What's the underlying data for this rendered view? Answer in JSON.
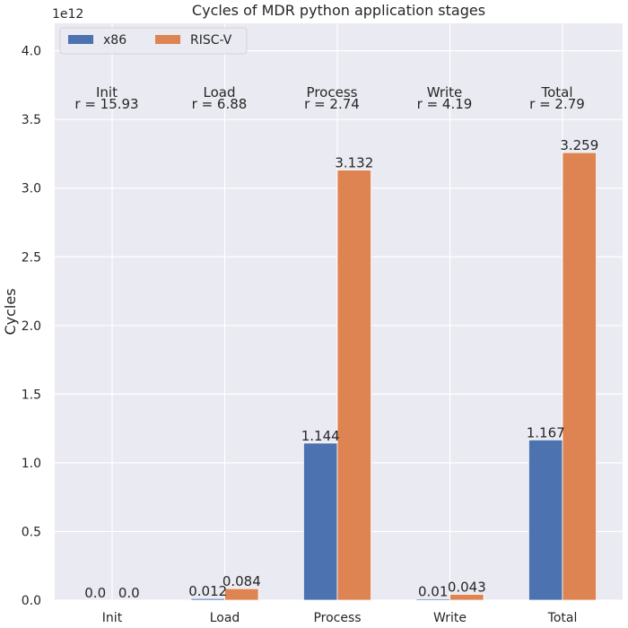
{
  "chart_data": {
    "type": "bar",
    "title": "Cycles of MDR python application stages",
    "ylabel": "Cycles",
    "y_multiplier": "1e12",
    "ylim": [
      0,
      4.2
    ],
    "yticks": [
      "0.0",
      "0.5",
      "1.0",
      "1.5",
      "2.0",
      "2.5",
      "3.0",
      "3.5",
      "4.0"
    ],
    "categories": [
      "Init",
      "Load",
      "Process",
      "Write",
      "Total"
    ],
    "series": [
      {
        "name": "x86",
        "color": "#4c72b0",
        "values": [
          0.0,
          0.012,
          1.144,
          0.01,
          1.167
        ],
        "labels": [
          "0.0",
          "0.012",
          "1.144",
          "0.01",
          "1.167"
        ]
      },
      {
        "name": "RISC-V",
        "color": "#dd8452",
        "values": [
          0.0,
          0.084,
          3.132,
          0.043,
          3.259
        ],
        "labels": [
          "0.0",
          "0.084",
          "3.132",
          "0.043",
          "3.259"
        ]
      }
    ],
    "ratio_annotations": [
      {
        "stage": "Init",
        "ratio": "r = 15.93"
      },
      {
        "stage": "Load",
        "ratio": "r = 6.88"
      },
      {
        "stage": "Process",
        "ratio": "r = 2.74"
      },
      {
        "stage": "Write",
        "ratio": "r = 4.19"
      },
      {
        "stage": "Total",
        "ratio": "r = 2.79"
      }
    ],
    "legend_position": "top-left",
    "grid": true
  }
}
